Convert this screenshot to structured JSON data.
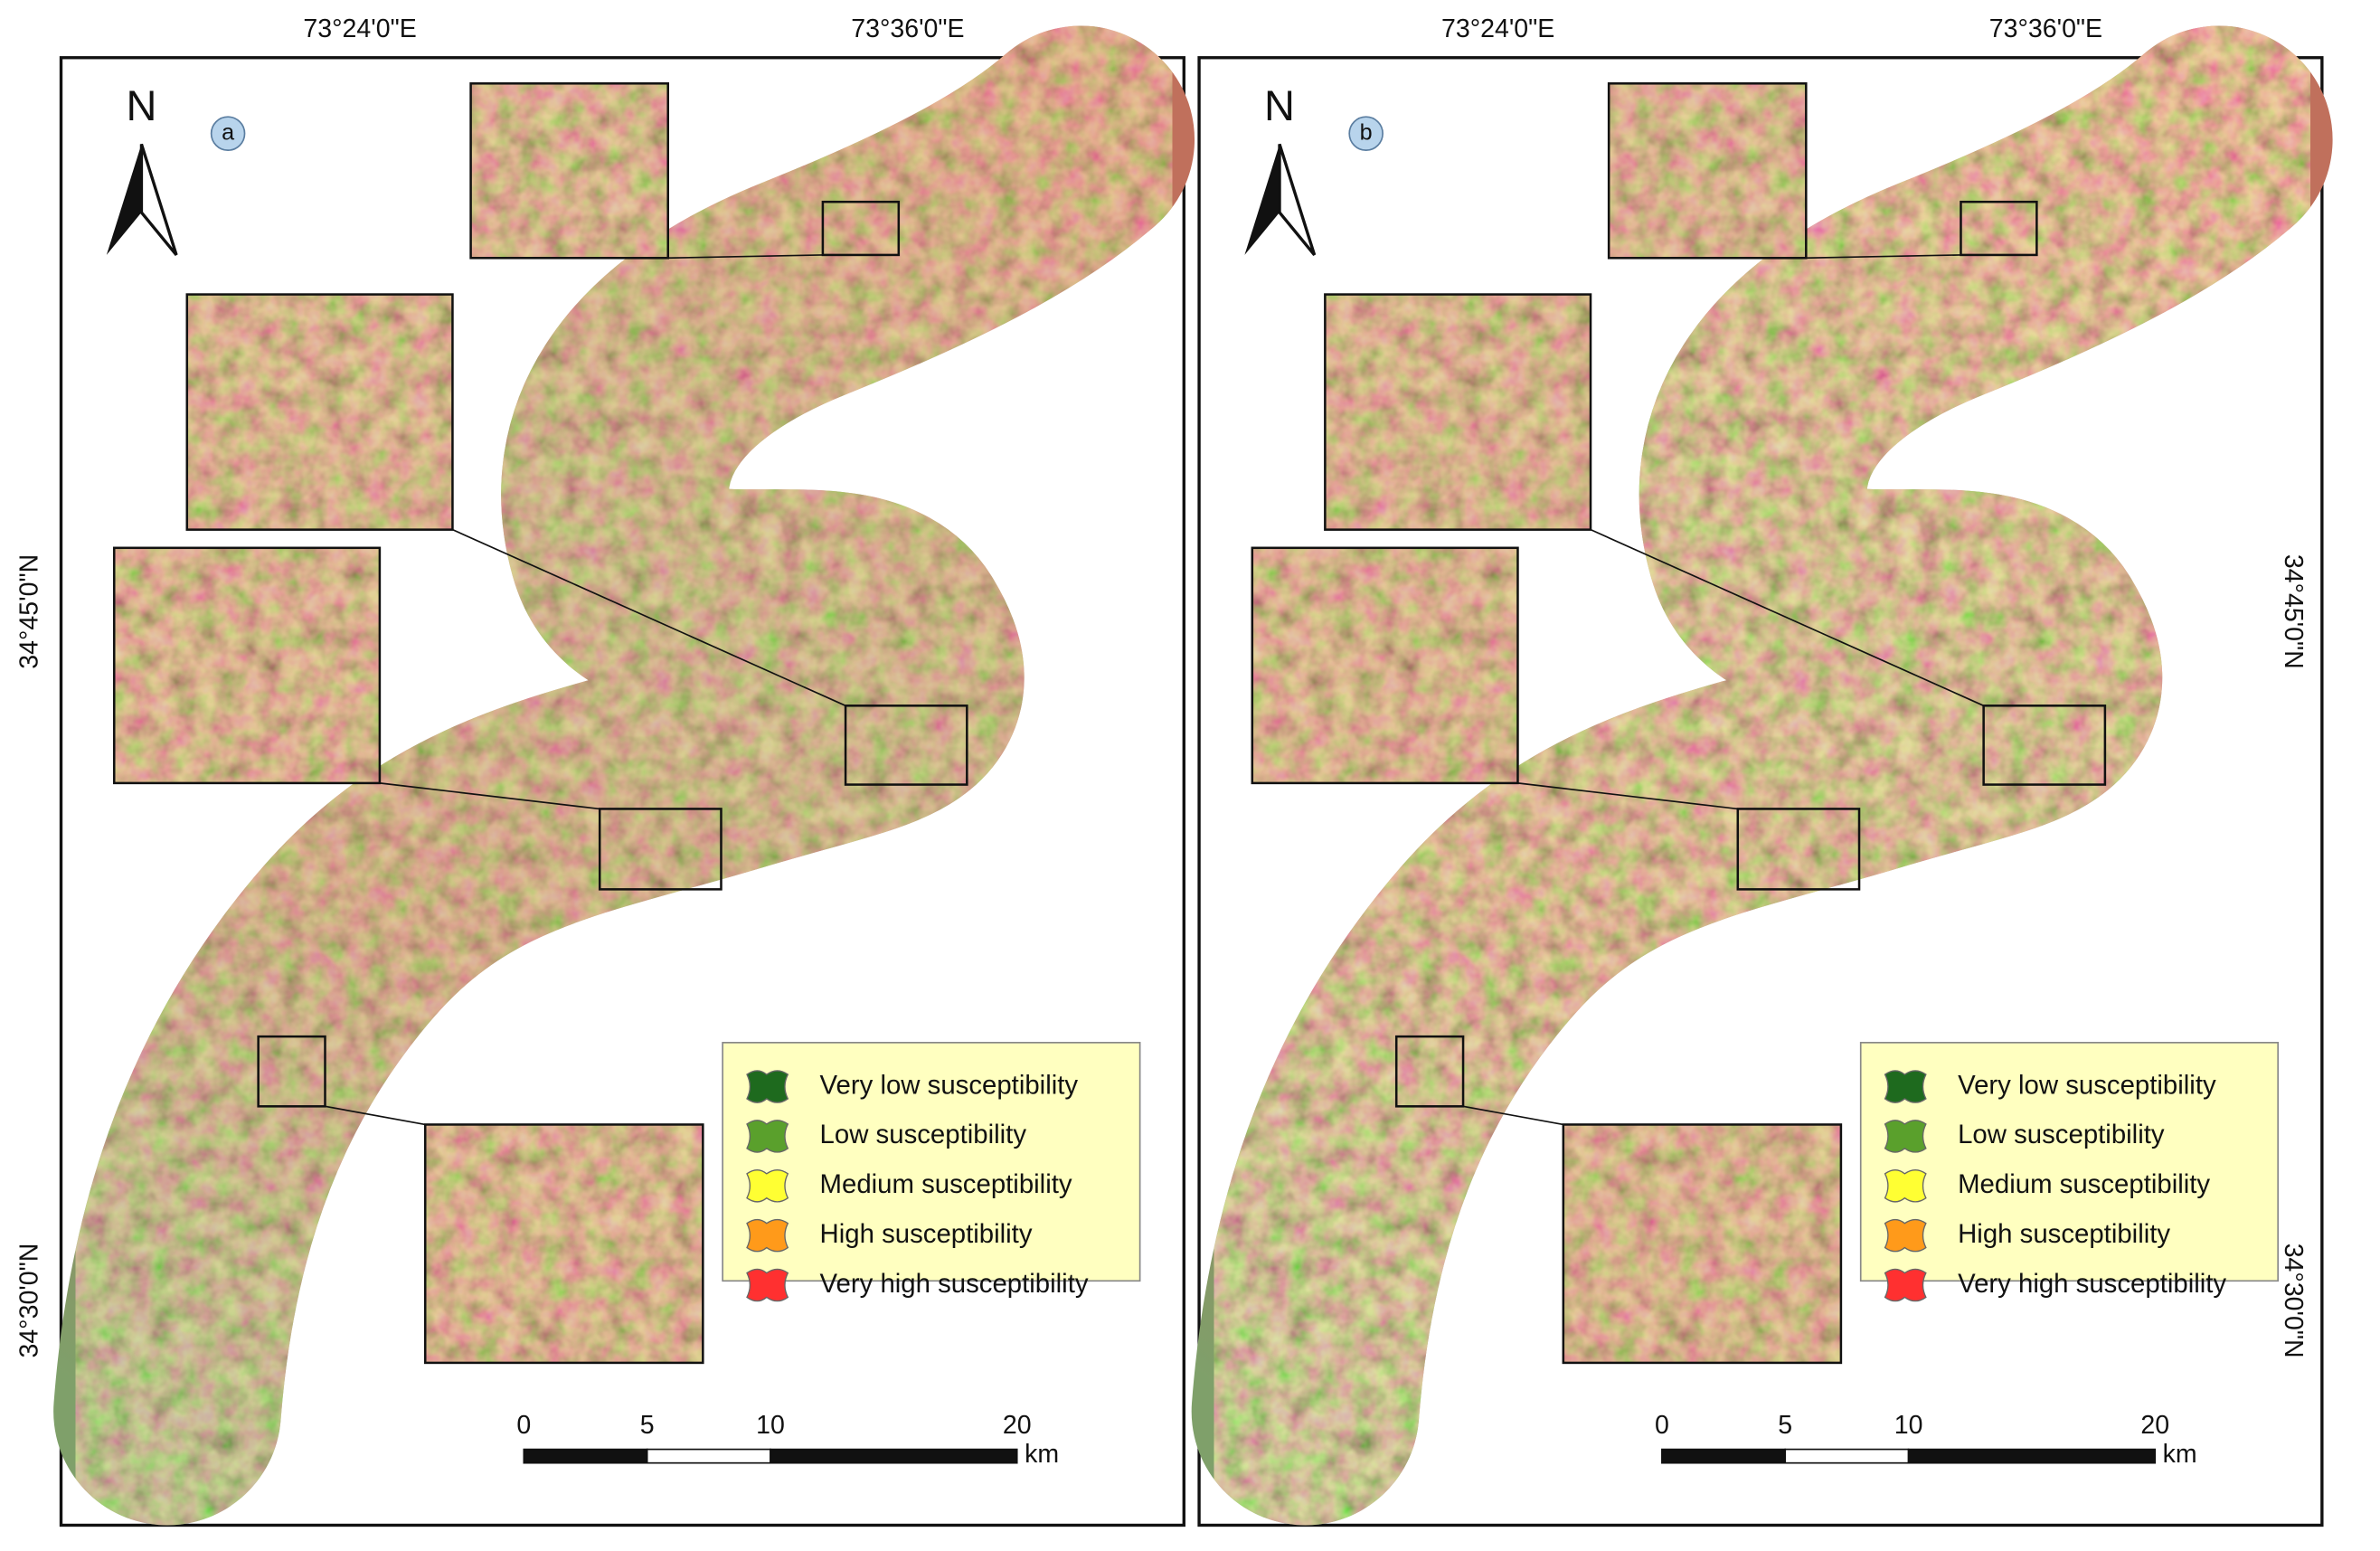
{
  "panels": [
    {
      "label": "a",
      "north": "N",
      "top_labels": [
        "73°24'0\"E",
        "73°36'0\"E"
      ],
      "side_labels": [
        "34°45'0\"N",
        "34°30'0\"N"
      ],
      "legend": [
        {
          "label": "Very low susceptibility",
          "color": "#1e6a1e"
        },
        {
          "label": "Low susceptibility",
          "color": "#5aa02c"
        },
        {
          "label": "Medium susceptibility",
          "color": "#ffff33"
        },
        {
          "label": "High susceptibility",
          "color": "#ff9a1a"
        },
        {
          "label": "Very high susceptibility",
          "color": "#ff3030"
        }
      ],
      "scale": {
        "ticks": [
          0,
          5,
          10,
          20
        ],
        "unit": "km"
      }
    },
    {
      "label": "b",
      "north": "N",
      "top_labels": [
        "73°24'0\"E",
        "73°36'0\"E"
      ],
      "side_labels": [
        "34°45'0\"N",
        "34°30'0\"N"
      ],
      "legend": [
        {
          "label": "Very low susceptibility",
          "color": "#1e6a1e"
        },
        {
          "label": "Low susceptibility",
          "color": "#5aa02c"
        },
        {
          "label": "Medium susceptibility",
          "color": "#ffff33"
        },
        {
          "label": "High susceptibility",
          "color": "#ff9a1a"
        },
        {
          "label": "Very high susceptibility",
          "color": "#ff3030"
        }
      ],
      "scale": {
        "ticks": [
          0,
          5,
          10,
          20
        ],
        "unit": "km"
      }
    }
  ]
}
